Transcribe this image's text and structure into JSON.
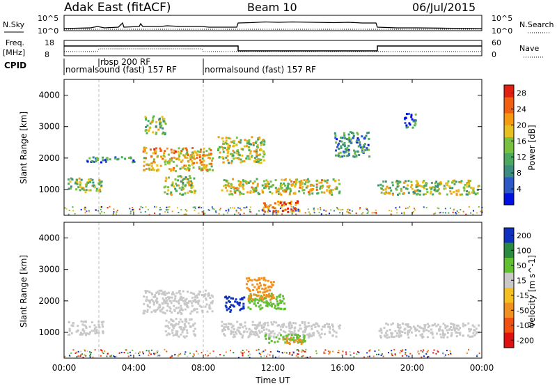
{
  "header": {
    "station": "Adak East (fitACF)",
    "beam": "Beam 10",
    "date": "06/Jul/2015"
  },
  "noise_panel": {
    "left_label": "N.Sky",
    "right_label": "N.Search",
    "left_ticks": [
      "10^5",
      "10^0"
    ],
    "right_ticks": [
      "10^5",
      "10^0"
    ]
  },
  "freq_panel": {
    "left_label_1": "Freq.",
    "left_label_2": "[MHz]",
    "right_label": "Nave",
    "left_ticks": [
      "18",
      "8"
    ],
    "right_ticks": [
      "60",
      "0"
    ]
  },
  "cpid_panel": {
    "label": "CPID",
    "programs": [
      "normalsound (fast) 157 RF",
      "rbsp 200 RF",
      "normalsound (fast) 157 RF"
    ]
  },
  "colors": {
    "power_scale": [
      "#0010e0",
      "#2c58c8",
      "#3c8c80",
      "#4ca860",
      "#78c040",
      "#e6c020",
      "#f49a10",
      "#f06010",
      "#e02010"
    ],
    "velocity_scale": [
      "#1030c0",
      "#2a8a40",
      "#60c030",
      "#c8c8c8",
      "#f4c020",
      "#f09020",
      "#f05010",
      "#e01010"
    ]
  },
  "chart_data": [
    {
      "type": "heatmap",
      "title": "Power",
      "xlabel": "",
      "ylabel": "Slant Range [km]",
      "x_ticks": [
        "00:00",
        "04:00",
        "08:00",
        "12:00",
        "16:00",
        "20:00",
        "00:00"
      ],
      "xlim_hours": [
        0,
        24
      ],
      "y_ticks": [
        1000,
        2000,
        3000,
        4000
      ],
      "ylim": [
        180,
        4500
      ],
      "colorbar": {
        "label": "Power [dB]",
        "ticks": [
          4,
          8,
          12,
          16,
          20,
          24,
          28
        ],
        "range": [
          0,
          30
        ]
      },
      "features": [
        {
          "t": [
            0.2,
            2.2
          ],
          "range_km": [
            880,
            1320
          ],
          "level_db": 14
        },
        {
          "t": [
            1.2,
            4.0
          ],
          "range_km": [
            1830,
            2000
          ],
          "level_db": 9
        },
        {
          "t": [
            4.5,
            8.5
          ],
          "range_km": [
            1550,
            2300
          ],
          "level_db": 20
        },
        {
          "t": [
            4.6,
            5.8
          ],
          "range_km": [
            2700,
            3300
          ],
          "level_db": 14
        },
        {
          "t": [
            5.7,
            7.5
          ],
          "range_km": [
            800,
            1400
          ],
          "level_db": 15
        },
        {
          "t": [
            8.8,
            11.5
          ],
          "range_km": [
            1800,
            2650
          ],
          "level_db": 16
        },
        {
          "t": [
            9.0,
            15.8
          ],
          "range_km": [
            800,
            1300
          ],
          "level_db": 17
        },
        {
          "t": [
            11.3,
            13.5
          ],
          "range_km": [
            250,
            600
          ],
          "level_db": 24
        },
        {
          "t": [
            15.5,
            17.5
          ],
          "range_km": [
            2000,
            2800
          ],
          "level_db": 9
        },
        {
          "t": [
            18.0,
            23.8
          ],
          "range_km": [
            800,
            1250
          ],
          "level_db": 15
        },
        {
          "t": [
            19.5,
            20.2
          ],
          "range_km": [
            2900,
            3400
          ],
          "level_db": 7
        }
      ]
    },
    {
      "type": "heatmap",
      "title": "Velocity",
      "xlabel": "Time UT",
      "ylabel": "Slant Range [km]",
      "x_ticks": [
        "00:00",
        "04:00",
        "08:00",
        "12:00",
        "16:00",
        "20:00",
        "00:00"
      ],
      "xlim_hours": [
        0,
        24
      ],
      "y_ticks": [
        1000,
        2000,
        3000,
        4000
      ],
      "ylim": [
        180,
        4500
      ],
      "colorbar": {
        "label": "Velocity [m s^-1]",
        "ticks": [
          200,
          100,
          50,
          15,
          -15,
          -50,
          -100,
          -200
        ],
        "range": [
          -250,
          250
        ]
      },
      "features": [
        {
          "t": [
            0.2,
            2.2
          ],
          "range_km": [
            880,
            1320
          ],
          "velocity": 0
        },
        {
          "t": [
            4.5,
            8.5
          ],
          "range_km": [
            1550,
            2300
          ],
          "velocity": 0
        },
        {
          "t": [
            5.7,
            7.5
          ],
          "range_km": [
            800,
            1400
          ],
          "velocity": 0
        },
        {
          "t": [
            9.0,
            15.8
          ],
          "range_km": [
            800,
            1300
          ],
          "velocity": 0
        },
        {
          "t": [
            18.0,
            23.8
          ],
          "range_km": [
            800,
            1250
          ],
          "velocity": 0
        },
        {
          "t": [
            9.2,
            10.3
          ],
          "range_km": [
            1600,
            2100
          ],
          "velocity": 220
        },
        {
          "t": [
            10.5,
            12.8
          ],
          "range_km": [
            1700,
            2200
          ],
          "velocity": 60
        },
        {
          "t": [
            10.4,
            12.0
          ],
          "range_km": [
            2000,
            2700
          ],
          "velocity": -40
        },
        {
          "t": [
            11.5,
            13.8
          ],
          "range_km": [
            600,
            900
          ],
          "velocity": 60
        },
        {
          "t": [
            12.5,
            13.6
          ],
          "range_km": [
            600,
            800
          ],
          "velocity": -60
        }
      ]
    }
  ]
}
